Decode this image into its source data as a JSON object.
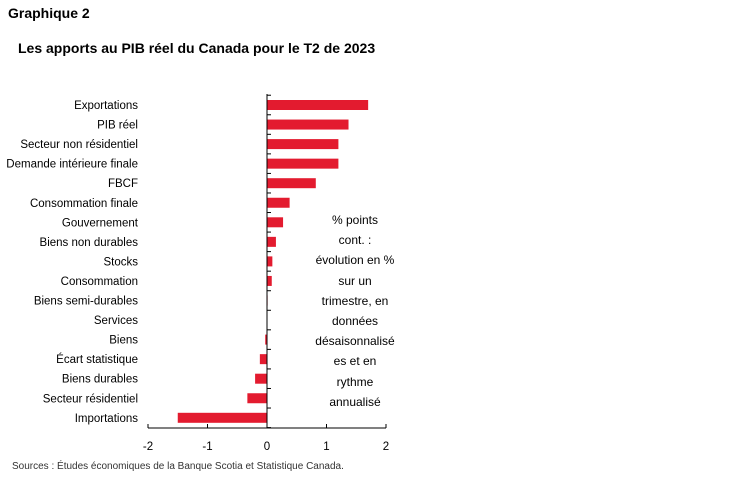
{
  "header": {
    "graph_label": "Graphique 2",
    "title": "Les apports au PIB réel du Canada pour le T2 de 2023"
  },
  "note_lines": [
    "% points",
    "cont. :",
    "évolution en %",
    "sur un",
    "trimestre, en",
    "données",
    "désaisonnalisé",
    "es et en",
    "rythme",
    "annualisé"
  ],
  "source": "Sources : Études économiques de la Banque Scotia et Statistique Canada.",
  "colors": {
    "bar": "#e31b2f",
    "axis": "#000000"
  },
  "chart_data": {
    "type": "bar",
    "orientation": "horizontal",
    "categories": [
      "Exportations",
      "PIB réel",
      "Secteur non résidentiel",
      "Demande intérieure finale",
      "FBCF",
      "Consommation finale",
      "Gouvernement",
      "Biens non durables",
      "Stocks",
      "Consommation",
      "Biens semi-durables",
      "Services",
      "Biens",
      "Écart statistique",
      "Biens durables",
      "Secteur résidentiel",
      "Importations"
    ],
    "values": [
      1.7,
      1.37,
      1.2,
      1.2,
      0.82,
      0.38,
      0.27,
      0.15,
      0.09,
      0.08,
      0.01,
      0.0,
      -0.03,
      -0.12,
      -0.2,
      -0.33,
      -1.5
    ],
    "xlim": [
      -2,
      2
    ],
    "xticks": [
      -2,
      -1,
      0,
      1,
      2
    ],
    "xtick_labels": [
      "-2",
      "-1",
      "0",
      "1",
      "2"
    ],
    "grid": false
  }
}
